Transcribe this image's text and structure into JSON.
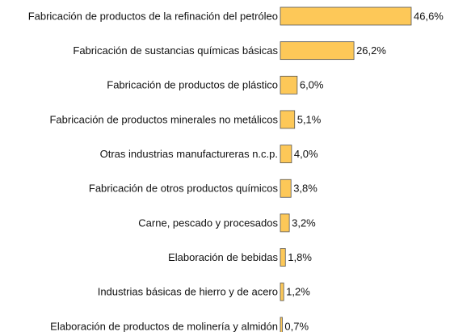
{
  "chart_data": {
    "type": "hbar",
    "categories": [
      "Fabricación de productos de la refinación del petróleo",
      "Fabricación de sustancias químicas básicas",
      "Fabricación de productos de plástico",
      "Fabricación de productos minerales no metálicos",
      "Otras industrias manufactureras n.c.p.",
      "Fabricación de otros productos químicos",
      "Carne, pescado y procesados",
      "Elaboración de bebidas",
      "Industrias básicas de hierro y de acero",
      "Elaboración de productos de molinería y almidón"
    ],
    "values": [
      46.6,
      26.2,
      6.0,
      5.1,
      4.0,
      3.8,
      3.2,
      1.8,
      1.2,
      0.7
    ],
    "value_labels": [
      "46,6%",
      "26,2%",
      "6,0%",
      "5,1%",
      "4,0%",
      "3,8%",
      "3,2%",
      "1,8%",
      "1,2%",
      "0,7%"
    ],
    "color": "#fdc858"
  }
}
